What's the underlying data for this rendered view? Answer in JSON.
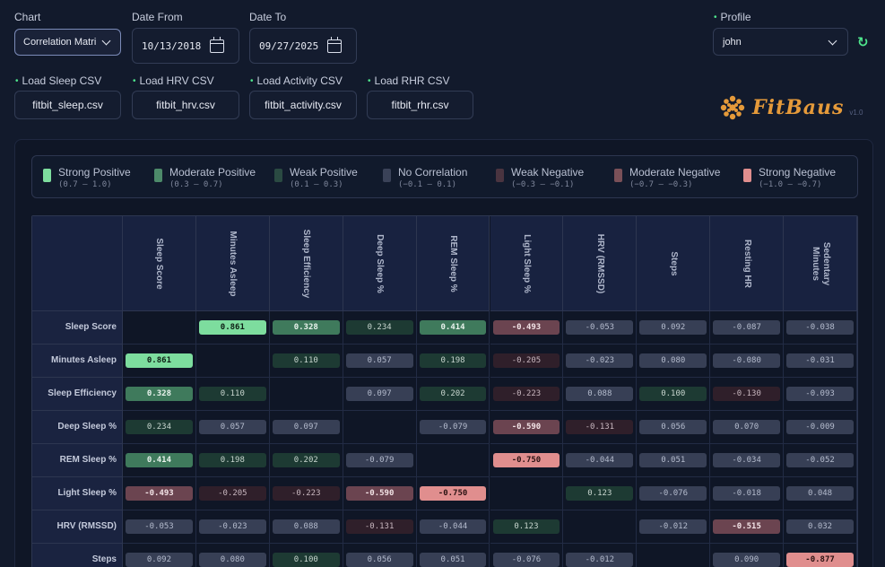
{
  "controls": {
    "chart_label": "Chart",
    "chart_value": "Correlation Matri",
    "date_from_label": "Date From",
    "date_from_value": "10/13/2018",
    "date_to_label": "Date To",
    "date_to_value": "09/27/2025",
    "profile_label": "Profile",
    "profile_value": "john"
  },
  "loaders": [
    {
      "label": "Load Sleep CSV",
      "file": "fitbit_sleep.csv"
    },
    {
      "label": "Load HRV CSV",
      "file": "fitbit_hrv.csv"
    },
    {
      "label": "Load Activity CSV",
      "file": "fitbit_activity.csv"
    },
    {
      "label": "Load RHR CSV",
      "file": "fitbit_rhr.csv"
    }
  ],
  "brand": {
    "name": "FitBaus",
    "version": "v1.0",
    "logo_color": "#e59a3a"
  },
  "legend": [
    {
      "name": "Strong Positive",
      "range": "(0.7 – 1.0)",
      "color": "#7ddd9e"
    },
    {
      "name": "Moderate Positive",
      "range": "(0.3 – 0.7)",
      "color": "#4d8a6a"
    },
    {
      "name": "Weak Positive",
      "range": "(0.1 – 0.3)",
      "color": "#2a4a42"
    },
    {
      "name": "No Correlation",
      "range": "(−0.1 – 0.1)",
      "color": "#3a4258"
    },
    {
      "name": "Weak Negative",
      "range": "(−0.3 – −0.1)",
      "color": "#4a3440"
    },
    {
      "name": "Moderate Negative",
      "range": "(−0.7 – −0.3)",
      "color": "#7a5058"
    },
    {
      "name": "Strong Negative",
      "range": "(−1.0 – −0.7)",
      "color": "#e08e8e"
    }
  ],
  "chart_data": {
    "type": "heatmap",
    "columns": [
      "Sleep Score",
      "Minutes Asleep",
      "Sleep Efficiency",
      "Deep Sleep %",
      "REM Sleep %",
      "Light Sleep %",
      "HRV (RMSSD)",
      "Steps",
      "Resting HR",
      "Sedentary Minutes"
    ],
    "rows": [
      {
        "label": "Sleep Score",
        "values": [
          "",
          "0.861",
          "0.328",
          "0.234",
          "0.414",
          "-0.493",
          "-0.053",
          "0.092",
          "-0.087",
          "-0.038"
        ]
      },
      {
        "label": "Minutes Asleep",
        "values": [
          "0.861",
          "",
          "0.110",
          "0.057",
          "0.198",
          "-0.205",
          "-0.023",
          "0.080",
          "-0.080",
          "-0.031"
        ]
      },
      {
        "label": "Sleep Efficiency",
        "values": [
          "0.328",
          "0.110",
          "",
          "0.097",
          "0.202",
          "-0.223",
          "0.088",
          "0.100",
          "-0.130",
          "-0.093"
        ]
      },
      {
        "label": "Deep Sleep %",
        "values": [
          "0.234",
          "0.057",
          "0.097",
          "",
          "-0.079",
          "-0.590",
          "-0.131",
          "0.056",
          "0.070",
          "-0.009"
        ]
      },
      {
        "label": "REM Sleep %",
        "values": [
          "0.414",
          "0.198",
          "0.202",
          "-0.079",
          "",
          "-0.750",
          "-0.044",
          "0.051",
          "-0.034",
          "-0.052"
        ]
      },
      {
        "label": "Light Sleep %",
        "values": [
          "-0.493",
          "-0.205",
          "-0.223",
          "-0.590",
          "-0.750",
          "",
          "0.123",
          "-0.076",
          "-0.018",
          "0.048"
        ]
      },
      {
        "label": "HRV (RMSSD)",
        "values": [
          "-0.053",
          "-0.023",
          "0.088",
          "-0.131",
          "-0.044",
          "0.123",
          "",
          "-0.012",
          "-0.515",
          "0.032"
        ]
      },
      {
        "label": "Steps",
        "values": [
          "0.092",
          "0.080",
          "0.100",
          "0.056",
          "0.051",
          "-0.076",
          "-0.012",
          "",
          "0.090",
          "-0.877"
        ]
      }
    ]
  }
}
